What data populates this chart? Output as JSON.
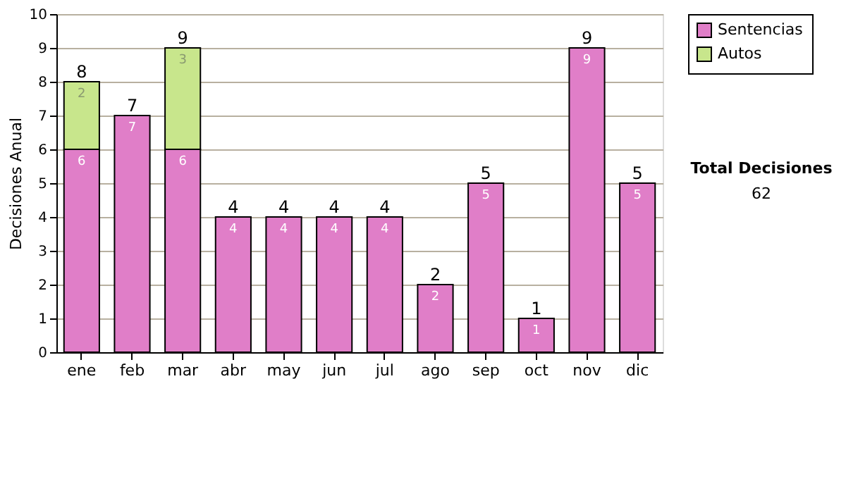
{
  "chart_data": {
    "type": "bar",
    "stacked": true,
    "ylabel": "Decisiones Anual",
    "categories": [
      "ene",
      "feb",
      "mar",
      "abr",
      "may",
      "jun",
      "jul",
      "ago",
      "sep",
      "oct",
      "nov",
      "dic"
    ],
    "series": [
      {
        "name": "Sentencias",
        "color": "#e07ec8",
        "values": [
          6,
          7,
          6,
          4,
          4,
          4,
          4,
          2,
          5,
          1,
          9,
          5
        ],
        "value_labels": [
          "6",
          "7",
          "6",
          "4",
          "4",
          "4",
          "4",
          "2",
          "5",
          "1",
          "9",
          "5"
        ]
      },
      {
        "name": "Autos",
        "color": "#c8e68c",
        "values": [
          2,
          null,
          3,
          null,
          null,
          null,
          null,
          null,
          null,
          null,
          null,
          null
        ],
        "value_labels": [
          "2",
          null,
          "3",
          null,
          null,
          null,
          null,
          null,
          null,
          null,
          null,
          null
        ]
      }
    ],
    "totals": [
      "8",
      "7",
      "9",
      "4",
      "4",
      "4",
      "4",
      "2",
      "5",
      "1",
      "9",
      "5"
    ],
    "ylim": [
      0,
      10
    ],
    "yticks": [
      0,
      1,
      2,
      3,
      4,
      5,
      6,
      7,
      8,
      9,
      10
    ],
    "grid": "y",
    "legend": "right",
    "annotations": [
      "Total Decisiones",
      "62"
    ]
  }
}
